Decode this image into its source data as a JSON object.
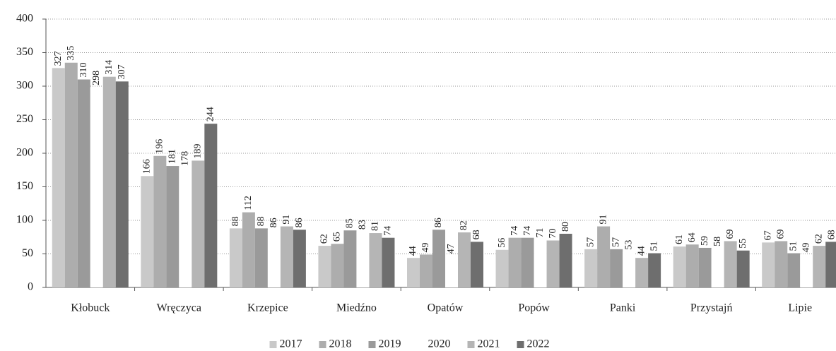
{
  "chart_data": {
    "type": "bar",
    "categories": [
      "Kłobuck",
      "Wręczyca",
      "Krzepice",
      "Miedźno",
      "Opatów",
      "Popów",
      "Panki",
      "Przystajń",
      "Lipie"
    ],
    "series": [
      {
        "name": "2017",
        "color": "#c9c9c9",
        "values": [
          327,
          166,
          88,
          62,
          44,
          56,
          57,
          61,
          67
        ]
      },
      {
        "name": "2018",
        "color": "#adadad",
        "values": [
          335,
          196,
          112,
          65,
          49,
          74,
          91,
          64,
          69
        ]
      },
      {
        "name": "2019",
        "color": "#9a9a9a",
        "values": [
          310,
          181,
          88,
          85,
          86,
          74,
          57,
          59,
          51
        ]
      },
      {
        "name": "2020",
        "color": "#ffffff",
        "values": [
          298,
          178,
          86,
          83,
          47,
          71,
          53,
          58,
          49
        ]
      },
      {
        "name": "2021",
        "color": "#b5b5b5",
        "values": [
          314,
          189,
          91,
          81,
          82,
          70,
          44,
          69,
          62
        ]
      },
      {
        "name": "2022",
        "color": "#6e6e6e",
        "values": [
          307,
          244,
          86,
          74,
          68,
          80,
          51,
          55,
          68
        ]
      }
    ],
    "ylim": [
      0,
      400
    ],
    "yticks": [
      0,
      50,
      100,
      150,
      200,
      250,
      300,
      350,
      400
    ],
    "grid": true,
    "legend": "bottom"
  }
}
